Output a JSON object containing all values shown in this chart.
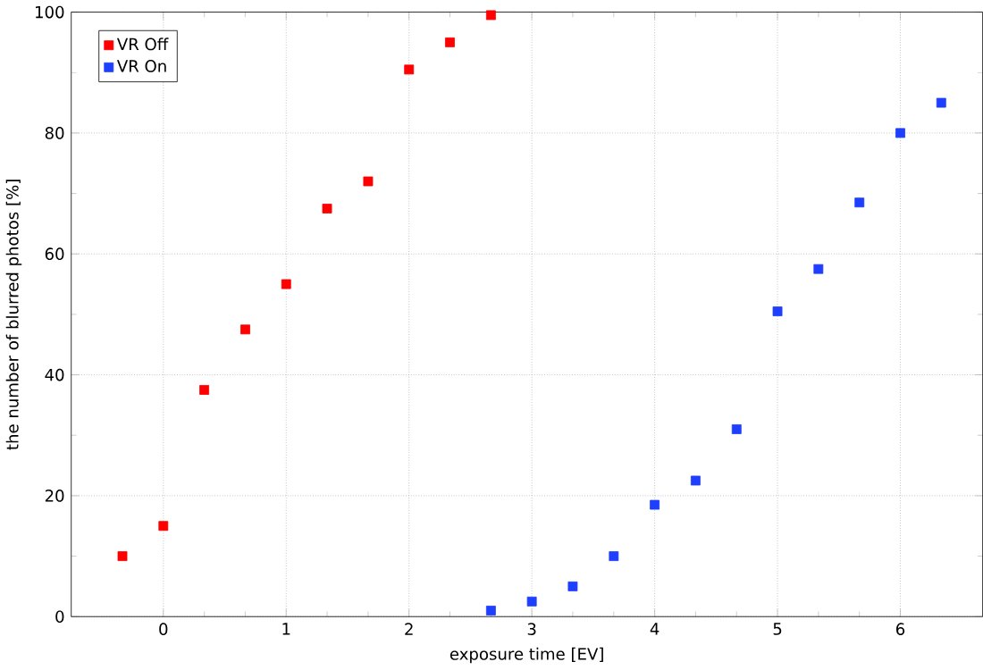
{
  "chart_data": {
    "type": "scatter",
    "xlabel": "exposure time [EV]",
    "ylabel": "the number of blurred photos [%]",
    "xlim": [
      -0.75,
      6.67
    ],
    "ylim": [
      0,
      100
    ],
    "xticks": [
      0,
      1,
      2,
      3,
      4,
      5,
      6
    ],
    "yticks": [
      0,
      20,
      40,
      60,
      80,
      100
    ],
    "grid": true,
    "legend": "top left",
    "marker": "square",
    "series": [
      {
        "name": "VR Off",
        "color": "#ff0000",
        "x": [
          -0.333,
          0,
          0.333,
          0.667,
          1,
          1.333,
          1.667,
          2,
          2.333,
          2.667
        ],
        "values": [
          10,
          15,
          37.5,
          47.5,
          55,
          67.5,
          72,
          90.5,
          95,
          99.5
        ]
      },
      {
        "name": "VR On",
        "color": "#1f3fff",
        "x": [
          2.667,
          3,
          3.333,
          3.667,
          4,
          4.333,
          4.667,
          5,
          5.333,
          5.667,
          6,
          6.333
        ],
        "values": [
          1,
          2.5,
          5,
          10,
          18.5,
          22.5,
          31,
          50.5,
          57.5,
          68.5,
          80,
          85
        ]
      }
    ]
  }
}
